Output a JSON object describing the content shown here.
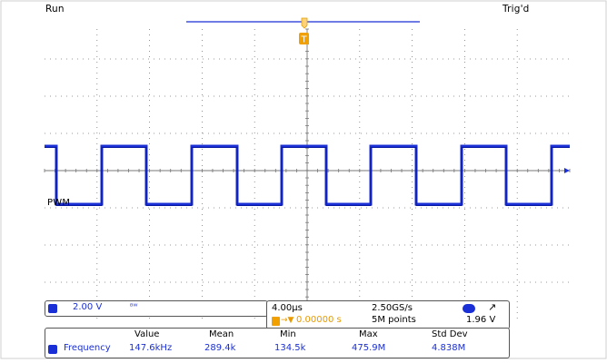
{
  "status": {
    "run_state": "Run",
    "trigger_state": "Trig'd"
  },
  "channel": {
    "label": "PWM",
    "scale": "2.00 V",
    "coupling_symbol": "ᴮ𝗐",
    "color": "#1a2fd6"
  },
  "timebase": {
    "time_per_div": "4.00µs",
    "sample_rate": "2.50GS/s",
    "trigger_position_prefix": "T→▼",
    "trigger_position": "0.00000 s",
    "record_length": "5M points",
    "trigger_level": "1.96 V",
    "trigger_slope_symbol": "↗"
  },
  "measurement": {
    "name": "Frequency",
    "headers": [
      "Value",
      "Mean",
      "Min",
      "Max",
      "Std Dev"
    ],
    "values": [
      "147.6kHz",
      "289.4k",
      "134.5k",
      "475.9M",
      "4.838M"
    ]
  },
  "trigger_marker": "T",
  "colors": {
    "trace": "#1a2fd6",
    "trigger": "#f0a000",
    "grid": "#777777"
  }
}
